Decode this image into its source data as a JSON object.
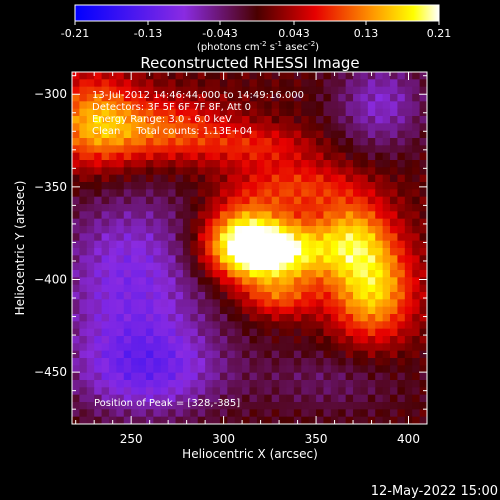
{
  "colorbar": {
    "ticks": [
      "-0.21",
      "-0.13",
      "-0.043",
      "0.043",
      "0.13",
      "0.21"
    ],
    "unit_prefix": "(photons cm",
    "unit_exp1": "-2",
    "unit_mid": " s",
    "unit_exp2": "-1",
    "unit_mid2": " asec",
    "unit_exp3": "-2",
    "unit_suffix": ")",
    "range": [
      -0.21,
      0.21
    ]
  },
  "plot": {
    "title": "Reconstructed RHESSI Image",
    "annotations": [
      "13-Jul-2012 14:46:44.000 to 14:49:16.000",
      "Detectors: 3F 5F 6F 7F 8F, Att 0",
      "Energy Range: 3.0 - 6.0 keV",
      "Clean     Total counts: 1.13E+04"
    ],
    "peak_label": "Position of Peak = [328,-385]",
    "timestamp": "12-May-2022 15:00"
  },
  "chart_data": {
    "type": "heatmap",
    "title": "Reconstructed RHESSI Image",
    "xlabel": "Heliocentric X (arcsec)",
    "ylabel": "Heliocentric Y (arcsec)",
    "xlim": [
      218,
      410
    ],
    "ylim": [
      -478,
      -288
    ],
    "x_ticks": [
      250,
      300,
      350,
      400
    ],
    "y_ticks": [
      -300,
      -350,
      -400,
      -450
    ],
    "x_tick_labels": [
      "250",
      "300",
      "350",
      "400"
    ],
    "y_tick_labels": [
      "−300",
      "−350",
      "−400",
      "−450"
    ],
    "colormap": "blue-purple-red-yellow-white",
    "value_range": [
      -0.21,
      0.21
    ],
    "peak": {
      "x": 328,
      "y": -385
    },
    "blobs": [
      {
        "x": 328,
        "y": -385,
        "sx": 22,
        "sy": 12,
        "amp": 0.2
      },
      {
        "x": 310,
        "y": -378,
        "sx": 15,
        "sy": 14,
        "amp": 0.14
      },
      {
        "x": 380,
        "y": -405,
        "sx": 16,
        "sy": 20,
        "amp": 0.16
      },
      {
        "x": 370,
        "y": -375,
        "sx": 14,
        "sy": 14,
        "amp": 0.1
      },
      {
        "x": 340,
        "y": -350,
        "sx": 25,
        "sy": 10,
        "amp": 0.08
      },
      {
        "x": 230,
        "y": -315,
        "sx": 18,
        "sy": 18,
        "amp": 0.13
      },
      {
        "x": 270,
        "y": -320,
        "sx": 25,
        "sy": 12,
        "amp": 0.1
      },
      {
        "x": 320,
        "y": -328,
        "sx": 22,
        "sy": 8,
        "amp": 0.06
      },
      {
        "x": 330,
        "y": -410,
        "sx": 14,
        "sy": 8,
        "amp": 0.08
      },
      {
        "x": 250,
        "y": -400,
        "sx": 30,
        "sy": 35,
        "amp": -0.1
      },
      {
        "x": 260,
        "y": -450,
        "sx": 30,
        "sy": 18,
        "amp": -0.09
      },
      {
        "x": 385,
        "y": -305,
        "sx": 18,
        "sy": 18,
        "amp": -0.08
      },
      {
        "x": 360,
        "y": -455,
        "sx": 30,
        "sy": 14,
        "amp": -0.04
      }
    ]
  }
}
